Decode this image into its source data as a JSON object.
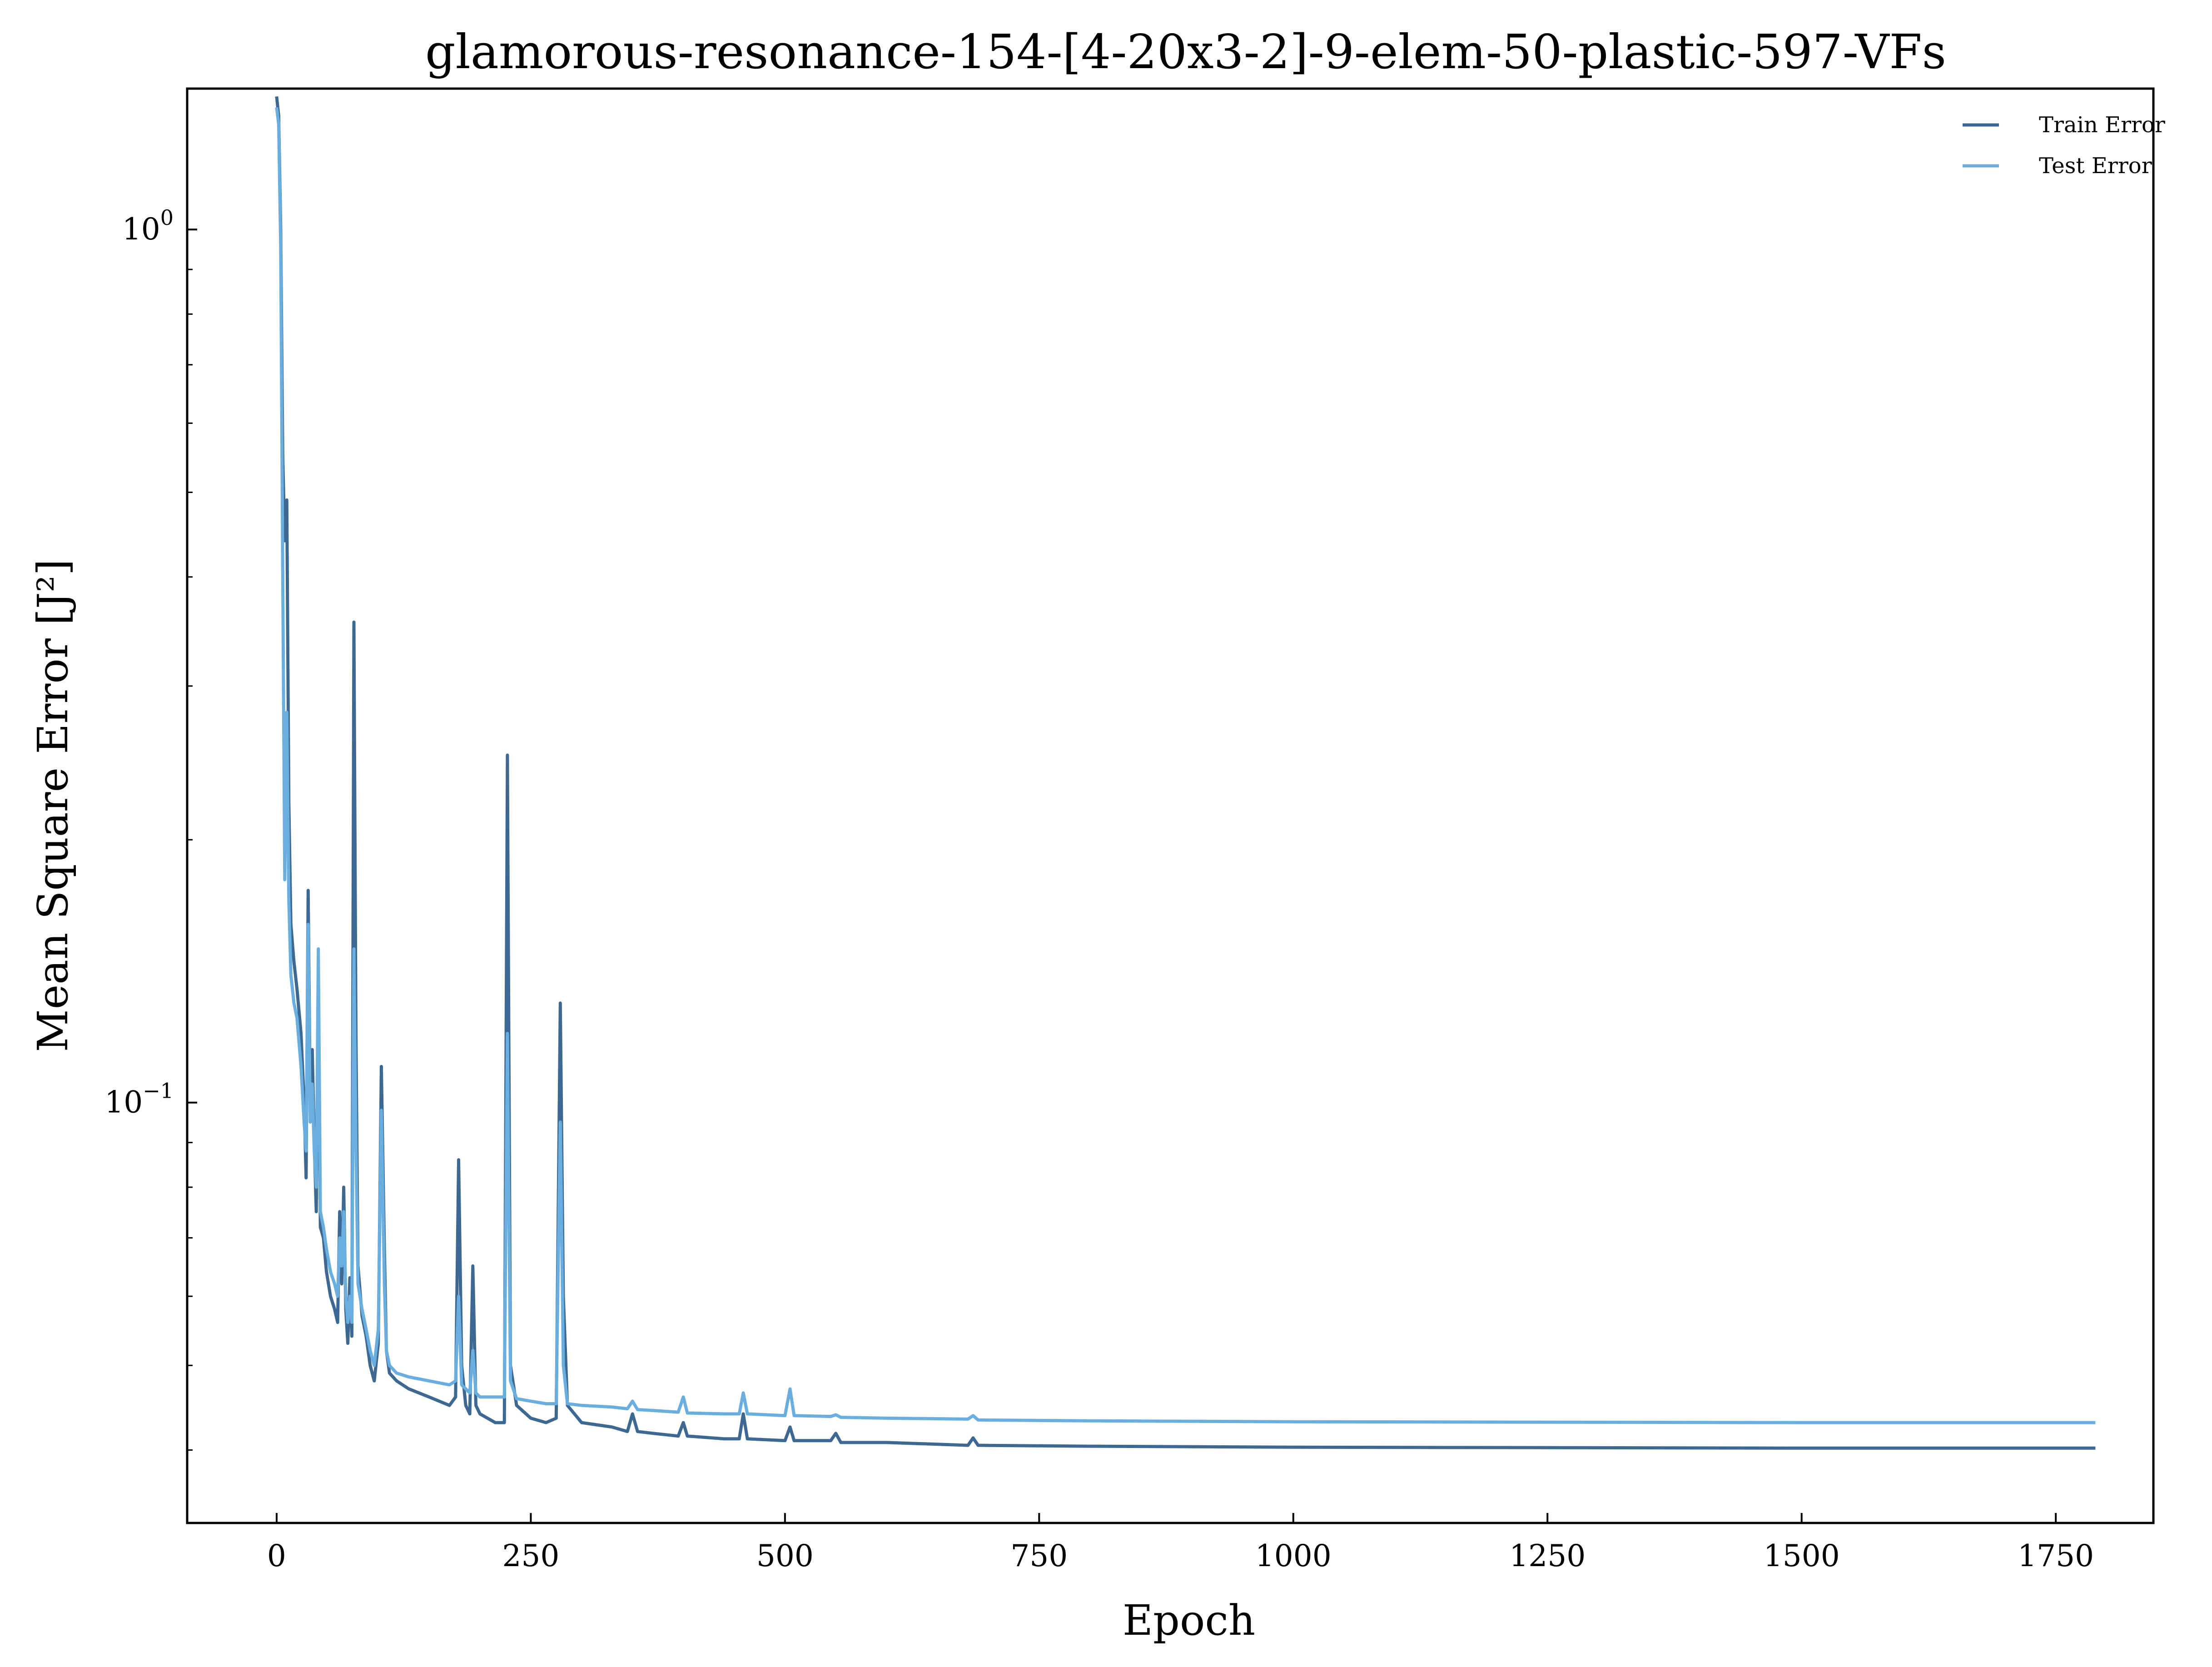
{
  "chart_data": {
    "type": "line",
    "title": "glamorous-resonance-154-[4-20x3-2]-9-elem-50-plastic-597-VFs",
    "xlabel": "Epoch",
    "ylabel": "Mean Square Error [J²]",
    "xlim": [
      -88,
      1846
    ],
    "ylim": [
      0.033,
      1.45
    ],
    "yscale": "log",
    "xticks": [
      0,
      250,
      500,
      750,
      1000,
      1250,
      1500,
      1750
    ],
    "xtick_labels": [
      "0",
      "250",
      "500",
      "750",
      "1000",
      "1250",
      "1500",
      "1750"
    ],
    "yticks": [
      1.0,
      0.1
    ],
    "ytick_labels": [
      {
        "base": "10",
        "exp": "0"
      },
      {
        "base": "10",
        "exp": "−1"
      }
    ],
    "grid": false,
    "legend_position": "top-right",
    "series": [
      {
        "name": "Train Error",
        "color": "#3d6891",
        "points": [
          [
            0,
            1.42
          ],
          [
            2,
            1.35
          ],
          [
            4,
            1.0
          ],
          [
            6,
            0.55
          ],
          [
            8,
            0.44
          ],
          [
            10,
            0.49
          ],
          [
            12,
            0.22
          ],
          [
            14,
            0.16
          ],
          [
            17,
            0.145
          ],
          [
            20,
            0.135
          ],
          [
            24,
            0.12
          ],
          [
            27,
            0.1
          ],
          [
            29,
            0.082
          ],
          [
            31,
            0.175
          ],
          [
            33,
            0.1
          ],
          [
            35,
            0.115
          ],
          [
            37,
            0.09
          ],
          [
            39,
            0.075
          ],
          [
            41,
            0.14
          ],
          [
            43,
            0.072
          ],
          [
            46,
            0.07
          ],
          [
            49,
            0.064
          ],
          [
            53,
            0.06
          ],
          [
            57,
            0.058
          ],
          [
            60,
            0.056
          ],
          [
            62,
            0.075
          ],
          [
            64,
            0.062
          ],
          [
            66,
            0.08
          ],
          [
            68,
            0.058
          ],
          [
            70,
            0.053
          ],
          [
            72,
            0.063
          ],
          [
            74,
            0.054
          ],
          [
            76,
            0.355
          ],
          [
            78,
            0.12
          ],
          [
            80,
            0.065
          ],
          [
            84,
            0.057
          ],
          [
            88,
            0.054
          ],
          [
            92,
            0.05
          ],
          [
            96,
            0.048
          ],
          [
            100,
            0.053
          ],
          [
            103,
            0.11
          ],
          [
            106,
            0.068
          ],
          [
            108,
            0.052
          ],
          [
            111,
            0.049
          ],
          [
            118,
            0.048
          ],
          [
            130,
            0.047
          ],
          [
            150,
            0.046
          ],
          [
            170,
            0.045
          ],
          [
            176,
            0.046
          ],
          [
            179,
            0.086
          ],
          [
            182,
            0.05
          ],
          [
            186,
            0.045
          ],
          [
            190,
            0.044
          ],
          [
            193,
            0.065
          ],
          [
            196,
            0.045
          ],
          [
            200,
            0.044
          ],
          [
            215,
            0.043
          ],
          [
            224,
            0.043
          ],
          [
            227,
            0.25
          ],
          [
            230,
            0.05
          ],
          [
            236,
            0.045
          ],
          [
            250,
            0.0435
          ],
          [
            265,
            0.043
          ],
          [
            275,
            0.0435
          ],
          [
            279,
            0.13
          ],
          [
            282,
            0.06
          ],
          [
            286,
            0.045
          ],
          [
            300,
            0.043
          ],
          [
            330,
            0.0425
          ],
          [
            345,
            0.042
          ],
          [
            350,
            0.044
          ],
          [
            355,
            0.042
          ],
          [
            370,
            0.0418
          ],
          [
            395,
            0.0415
          ],
          [
            400,
            0.043
          ],
          [
            404,
            0.0415
          ],
          [
            440,
            0.0412
          ],
          [
            455,
            0.0412
          ],
          [
            459,
            0.044
          ],
          [
            463,
            0.0412
          ],
          [
            500,
            0.041
          ],
          [
            505,
            0.0425
          ],
          [
            509,
            0.041
          ],
          [
            545,
            0.041
          ],
          [
            550,
            0.0418
          ],
          [
            555,
            0.0408
          ],
          [
            600,
            0.0408
          ],
          [
            680,
            0.0405
          ],
          [
            685,
            0.0413
          ],
          [
            690,
            0.0405
          ],
          [
            800,
            0.0404
          ],
          [
            1000,
            0.0403
          ],
          [
            1500,
            0.0402
          ],
          [
            1789,
            0.0402
          ]
        ]
      },
      {
        "name": "Test Error",
        "color": "#6aaee0",
        "points": [
          [
            0,
            1.38
          ],
          [
            2,
            1.32
          ],
          [
            4,
            0.95
          ],
          [
            6,
            0.4
          ],
          [
            8,
            0.18
          ],
          [
            10,
            0.28
          ],
          [
            12,
            0.17
          ],
          [
            14,
            0.14
          ],
          [
            17,
            0.13
          ],
          [
            20,
            0.125
          ],
          [
            24,
            0.11
          ],
          [
            27,
            0.095
          ],
          [
            29,
            0.088
          ],
          [
            31,
            0.16
          ],
          [
            33,
            0.095
          ],
          [
            35,
            0.105
          ],
          [
            37,
            0.088
          ],
          [
            39,
            0.08
          ],
          [
            41,
            0.15
          ],
          [
            43,
            0.075
          ],
          [
            46,
            0.072
          ],
          [
            49,
            0.068
          ],
          [
            53,
            0.064
          ],
          [
            57,
            0.062
          ],
          [
            60,
            0.06
          ],
          [
            62,
            0.07
          ],
          [
            64,
            0.065
          ],
          [
            66,
            0.075
          ],
          [
            68,
            0.06
          ],
          [
            70,
            0.056
          ],
          [
            72,
            0.06
          ],
          [
            74,
            0.056
          ],
          [
            76,
            0.15
          ],
          [
            78,
            0.09
          ],
          [
            80,
            0.062
          ],
          [
            84,
            0.058
          ],
          [
            88,
            0.055
          ],
          [
            92,
            0.052
          ],
          [
            96,
            0.05
          ],
          [
            100,
            0.055
          ],
          [
            103,
            0.098
          ],
          [
            106,
            0.062
          ],
          [
            108,
            0.052
          ],
          [
            111,
            0.05
          ],
          [
            118,
            0.049
          ],
          [
            130,
            0.0485
          ],
          [
            150,
            0.048
          ],
          [
            170,
            0.0475
          ],
          [
            176,
            0.048
          ],
          [
            179,
            0.06
          ],
          [
            182,
            0.0475
          ],
          [
            186,
            0.047
          ],
          [
            190,
            0.0465
          ],
          [
            193,
            0.052
          ],
          [
            196,
            0.0465
          ],
          [
            200,
            0.046
          ],
          [
            215,
            0.046
          ],
          [
            224,
            0.046
          ],
          [
            227,
            0.12
          ],
          [
            230,
            0.048
          ],
          [
            236,
            0.0458
          ],
          [
            250,
            0.0455
          ],
          [
            265,
            0.0452
          ],
          [
            275,
            0.0452
          ],
          [
            279,
            0.095
          ],
          [
            282,
            0.05
          ],
          [
            286,
            0.0452
          ],
          [
            300,
            0.045
          ],
          [
            330,
            0.0448
          ],
          [
            345,
            0.0446
          ],
          [
            350,
            0.0455
          ],
          [
            355,
            0.0445
          ],
          [
            370,
            0.0444
          ],
          [
            395,
            0.0442
          ],
          [
            400,
            0.046
          ],
          [
            404,
            0.0441
          ],
          [
            440,
            0.044
          ],
          [
            455,
            0.044
          ],
          [
            459,
            0.0465
          ],
          [
            463,
            0.044
          ],
          [
            500,
            0.0438
          ],
          [
            505,
            0.047
          ],
          [
            509,
            0.0438
          ],
          [
            545,
            0.0437
          ],
          [
            550,
            0.0439
          ],
          [
            555,
            0.0436
          ],
          [
            600,
            0.0435
          ],
          [
            680,
            0.0434
          ],
          [
            685,
            0.0438
          ],
          [
            690,
            0.0433
          ],
          [
            800,
            0.0432
          ],
          [
            1000,
            0.0431
          ],
          [
            1500,
            0.043
          ],
          [
            1789,
            0.043
          ]
        ]
      }
    ]
  }
}
